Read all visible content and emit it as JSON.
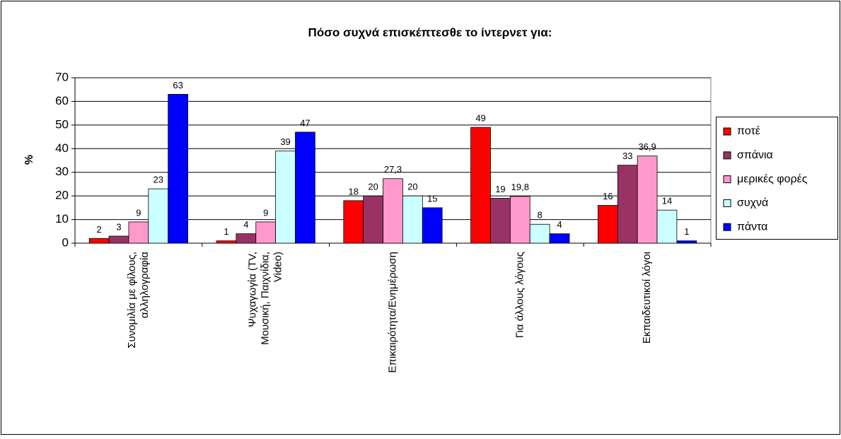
{
  "chart_data": {
    "type": "bar",
    "title": "Πόσο συχνά επισκέπτεσθε το ίντερνετ για:",
    "y_label": "%",
    "categories": [
      [
        "Συνομιλία με φίλους,",
        "αλληλογραφία"
      ],
      [
        "Ψυχαγωγία (TV,",
        "Μουσική, Παιχνίδια,",
        "Video)"
      ],
      [
        "Επικαιρότητα/Ενημέρωση"
      ],
      [
        "Για άλλους λόγους"
      ],
      [
        "Εκπαιδευτικοί λόγοι"
      ]
    ],
    "series": [
      {
        "name": "ποτέ",
        "color": "#ff0000",
        "values": [
          2,
          1,
          18,
          49,
          16
        ]
      },
      {
        "name": "σπάνια",
        "color": "#993366",
        "values": [
          3,
          4,
          20,
          19,
          33
        ]
      },
      {
        "name": "μερικές φορές",
        "color": "#ff99cc",
        "values": [
          9,
          9,
          27.3,
          19.8,
          36.9
        ],
        "value_labels": [
          "9",
          "9",
          "27,3",
          "19,8",
          "36,9"
        ]
      },
      {
        "name": "συχνά",
        "color": "#ccffff",
        "values": [
          23,
          39,
          20,
          8,
          14
        ]
      },
      {
        "name": "πάντα",
        "color": "#0000ff",
        "values": [
          63,
          47,
          15,
          4,
          1
        ]
      }
    ],
    "ylim": [
      0,
      70
    ],
    "yticks": [
      0,
      10,
      20,
      30,
      40,
      50,
      60,
      70
    ],
    "grid": true,
    "legend": "right"
  }
}
